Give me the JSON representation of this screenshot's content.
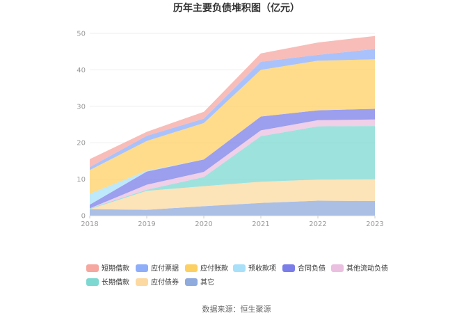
{
  "chart_data": {
    "type": "area",
    "stacked": true,
    "title": "历年主要负债堆积图（亿元）",
    "x": [
      "2018",
      "2019",
      "2020",
      "2021",
      "2022",
      "2023"
    ],
    "ylim": [
      0,
      50
    ],
    "yticks": [
      "0",
      "10",
      "20",
      "30",
      "40",
      "50"
    ],
    "series": [
      {
        "name": "其它",
        "color": "#8faadc",
        "values": [
          1.8,
          1.6,
          2.6,
          3.5,
          4.1,
          4.0
        ]
      },
      {
        "name": "应付债券",
        "color": "#fcd9a0",
        "values": [
          0.0,
          5.2,
          5.5,
          5.8,
          5.8,
          6.0
        ]
      },
      {
        "name": "长期借款",
        "color": "#7dd8d2",
        "values": [
          0.2,
          0.3,
          2.5,
          12.5,
          14.6,
          14.6
        ]
      },
      {
        "name": "其他流动负债",
        "color": "#ebbfe0",
        "values": [
          0.0,
          1.4,
          1.4,
          1.6,
          1.7,
          1.8
        ]
      },
      {
        "name": "合同负债",
        "color": "#7b7ee8",
        "values": [
          1.0,
          3.6,
          3.4,
          3.8,
          2.7,
          2.9
        ]
      },
      {
        "name": "预收款项",
        "color": "#a8e0fa",
        "values": [
          3.0,
          0.2,
          0.0,
          0.0,
          0.0,
          0.0
        ]
      },
      {
        "name": "应付账款",
        "color": "#fdd064",
        "values": [
          6.5,
          8.2,
          10.0,
          12.8,
          13.6,
          13.6
        ]
      },
      {
        "name": "应付票据",
        "color": "#8eaefa",
        "values": [
          0.8,
          1.4,
          1.2,
          2.2,
          1.6,
          2.8
        ]
      },
      {
        "name": "短期借款",
        "color": "#f6a7a0",
        "values": [
          2.2,
          1.1,
          1.9,
          2.3,
          3.4,
          3.6
        ]
      }
    ],
    "legend": [
      "短期借款",
      "应付票据",
      "应付账款",
      "预收款项",
      "合同负债",
      "其他流动负债",
      "长期借款",
      "应付债券",
      "其它"
    ]
  },
  "footer": {
    "source": "数据来源：恒生聚源"
  }
}
